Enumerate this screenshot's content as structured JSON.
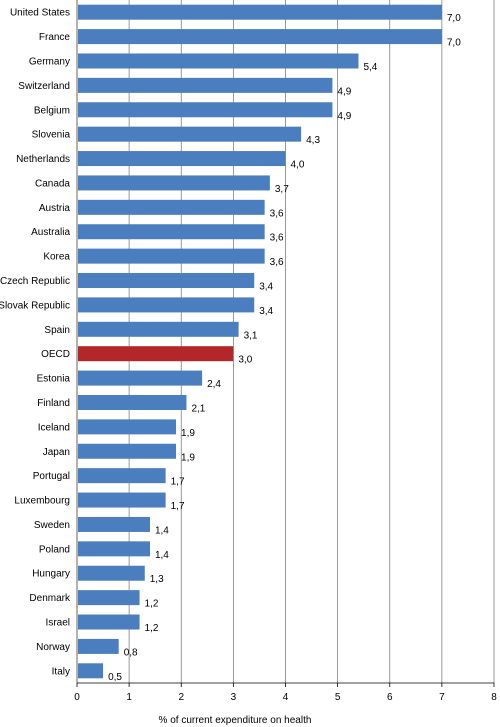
{
  "chart_data": {
    "type": "bar",
    "orientation": "horizontal",
    "xlabel": "% of current expenditure on health",
    "xlim": [
      0,
      8
    ],
    "xticks": [
      "0",
      "1",
      "2",
      "3",
      "4",
      "5",
      "6",
      "7",
      "8"
    ],
    "grid": true,
    "categories": [
      "United States",
      "France",
      "Germany",
      "Switzerland",
      "Belgium",
      "Slovenia",
      "Netherlands",
      "Canada",
      "Austria",
      "Australia",
      "Korea",
      "Czech Republic",
      "Slovak Republic",
      "Spain",
      "OECD",
      "Estonia",
      "Finland",
      "Iceland",
      "Japan",
      "Portugal",
      "Luxembourg",
      "Sweden",
      "Poland",
      "Hungary",
      "Denmark",
      "Israel",
      "Norway",
      "Italy"
    ],
    "values": [
      7.0,
      7.0,
      5.4,
      4.9,
      4.9,
      4.3,
      4.0,
      3.7,
      3.6,
      3.6,
      3.6,
      3.4,
      3.4,
      3.1,
      3.0,
      2.4,
      2.1,
      1.9,
      1.9,
      1.7,
      1.7,
      1.4,
      1.4,
      1.3,
      1.2,
      1.2,
      0.8,
      0.5
    ],
    "value_labels": [
      "7,0",
      "7,0",
      "5,4",
      "4,9",
      "4,9",
      "4,3",
      "4,0",
      "3,7",
      "3,6",
      "3,6",
      "3,6",
      "3,4",
      "3,4",
      "3,1",
      "3,0",
      "2,4",
      "2,1",
      "1,9",
      "1,9",
      "1,7",
      "1,7",
      "1,4",
      "1,4",
      "1,3",
      "1,2",
      "1,2",
      "0,8",
      "0,5"
    ],
    "highlight": "OECD",
    "colors": {
      "bar": "#4a7ebf",
      "highlight": "#b3272b",
      "grid": "#7f7f7f"
    }
  }
}
